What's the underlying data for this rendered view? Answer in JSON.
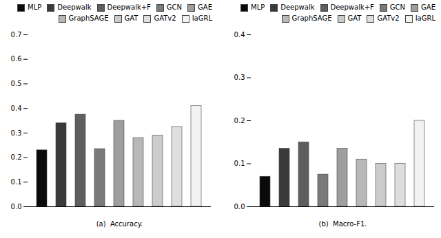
{
  "chart_data": [
    {
      "type": "bar",
      "xlabel": "(a)  Accuracy.",
      "categories": [
        "MLP",
        "Deepwalk",
        "Deepwalk+F",
        "GCN",
        "GAE",
        "GraphSAGE",
        "GAT",
        "GATv2",
        "IaGRL"
      ],
      "values": [
        0.23,
        0.34,
        0.375,
        0.235,
        0.35,
        0.28,
        0.29,
        0.325,
        0.41
      ],
      "colors": [
        "#0a0a0a",
        "#3a3a3a",
        "#5e5e5e",
        "#7a7a7a",
        "#9e9e9e",
        "#b8b8b8",
        "#cccccc",
        "#dedede",
        "#f2f2f2"
      ],
      "ylim": [
        0.0,
        0.7
      ],
      "yticks": [
        {
          "value": 0.0,
          "label": "0.0"
        },
        0.1,
        0.2,
        0.3,
        0.4,
        0.5,
        0.6,
        0.7
      ],
      "tick_labels": "y",
      "legend": "upper right",
      "grid": false
    },
    {
      "type": "bar",
      "xlabel": "(b)  Macro-F1.",
      "categories": [
        "MLP",
        "Deepwalk",
        "Deepwalk+F",
        "GCN",
        "GAE",
        "GraphSAGE",
        "GAT",
        "GATv2",
        "IaGRL"
      ],
      "values": [
        0.07,
        0.135,
        0.15,
        0.075,
        0.135,
        0.11,
        0.1,
        0.1,
        0.2
      ],
      "colors": [
        "#0a0a0a",
        "#3a3a3a",
        "#5e5e5e",
        "#7a7a7a",
        "#9e9e9e",
        "#b8b8b8",
        "#cccccc",
        "#dedede",
        "#f2f2f2"
      ],
      "ylim": [
        0.0,
        0.4
      ],
      "yticks": [
        {
          "value": 0.0,
          "label": "0.0"
        },
        0.1,
        0.2,
        0.3,
        0.4
      ],
      "tick_labels": "y",
      "legend": "upper right",
      "grid": false
    }
  ]
}
